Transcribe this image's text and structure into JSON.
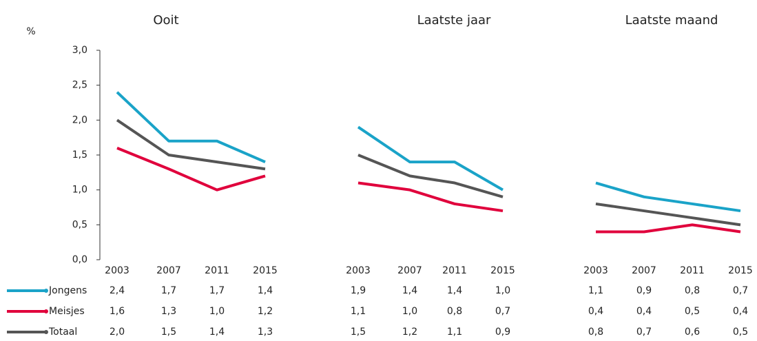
{
  "chart_data": {
    "type": "line",
    "y_label": "%",
    "ylim": [
      0,
      3
    ],
    "yticks": [
      {
        "value": 0,
        "label": "0,0"
      },
      {
        "value": 0.5,
        "label": "0,5"
      },
      {
        "value": 1,
        "label": "1,0"
      },
      {
        "value": 1.5,
        "label": "1,5"
      },
      {
        "value": 2,
        "label": "2,0"
      },
      {
        "value": 2.5,
        "label": "2,5"
      },
      {
        "value": 3,
        "label": "3,0"
      }
    ],
    "series": [
      {
        "name": "Jongens",
        "color": "#1aa3c8"
      },
      {
        "name": "Meisjes",
        "color": "#e0003c"
      },
      {
        "name": "Totaal",
        "color": "#555555"
      }
    ],
    "panels": [
      {
        "title": "Ooit",
        "categories": [
          "2003",
          "2007",
          "2011",
          "2015"
        ],
        "values": [
          [
            2.4,
            1.7,
            1.7,
            1.4
          ],
          [
            1.6,
            1.3,
            1.0,
            1.2
          ],
          [
            2.0,
            1.5,
            1.4,
            1.3
          ]
        ],
        "value_labels": [
          [
            "2,4",
            "1,7",
            "1,7",
            "1,4"
          ],
          [
            "1,6",
            "1,3",
            "1,0",
            "1,2"
          ],
          [
            "2,0",
            "1,5",
            "1,4",
            "1,3"
          ]
        ]
      },
      {
        "title": "Laatste jaar",
        "categories": [
          "2003",
          "2007",
          "2011",
          "2015"
        ],
        "values": [
          [
            1.9,
            1.4,
            1.4,
            1.0
          ],
          [
            1.1,
            1.0,
            0.8,
            0.7
          ],
          [
            1.5,
            1.2,
            1.1,
            0.9
          ]
        ],
        "value_labels": [
          [
            "1,9",
            "1,4",
            "1,4",
            "1,0"
          ],
          [
            "1,1",
            "1,0",
            "0,8",
            "0,7"
          ],
          [
            "1,5",
            "1,2",
            "1,1",
            "0,9"
          ]
        ]
      },
      {
        "title": "Laatste maand",
        "categories": [
          "2003",
          "2007",
          "2011",
          "2015"
        ],
        "values": [
          [
            1.1,
            0.9,
            0.8,
            0.7
          ],
          [
            0.4,
            0.4,
            0.5,
            0.4
          ],
          [
            0.8,
            0.7,
            0.6,
            0.5
          ]
        ],
        "value_labels": [
          [
            "1,1",
            "0,9",
            "0,8",
            "0,7"
          ],
          [
            "0,4",
            "0,4",
            "0,5",
            "0,4"
          ],
          [
            "0,8",
            "0,7",
            "0,6",
            "0,5"
          ]
        ]
      }
    ]
  }
}
